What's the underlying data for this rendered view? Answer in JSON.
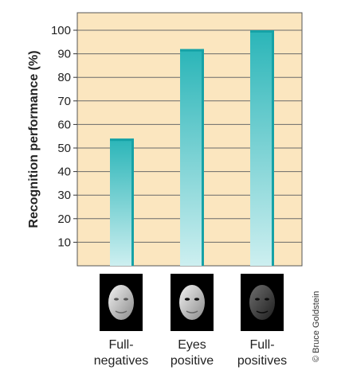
{
  "chart_data": {
    "type": "bar",
    "categories": [
      {
        "line1": "Full-",
        "line2": "negatives"
      },
      {
        "line1": "Eyes",
        "line2": "positive"
      },
      {
        "line1": "Full-",
        "line2": "positives"
      }
    ],
    "values": [
      54,
      92,
      100
    ],
    "ylabel": "Recognition performance (%)",
    "ylim": [
      0,
      110
    ],
    "yticks": [
      10,
      20,
      30,
      40,
      50,
      60,
      70,
      80,
      90,
      100
    ],
    "grid": true,
    "thumbnails": [
      "negative-face-icon",
      "eyes-positive-face-icon",
      "positive-face-icon"
    ],
    "colors": {
      "plot_bg": "#fbe6bf",
      "bar_top": "#2ab5b8",
      "bar_bottom": "#cdeff0",
      "bar_edge": "#16a2a6",
      "grid": "#6a6a6a"
    }
  },
  "credit": "© Bruce Goldstein"
}
